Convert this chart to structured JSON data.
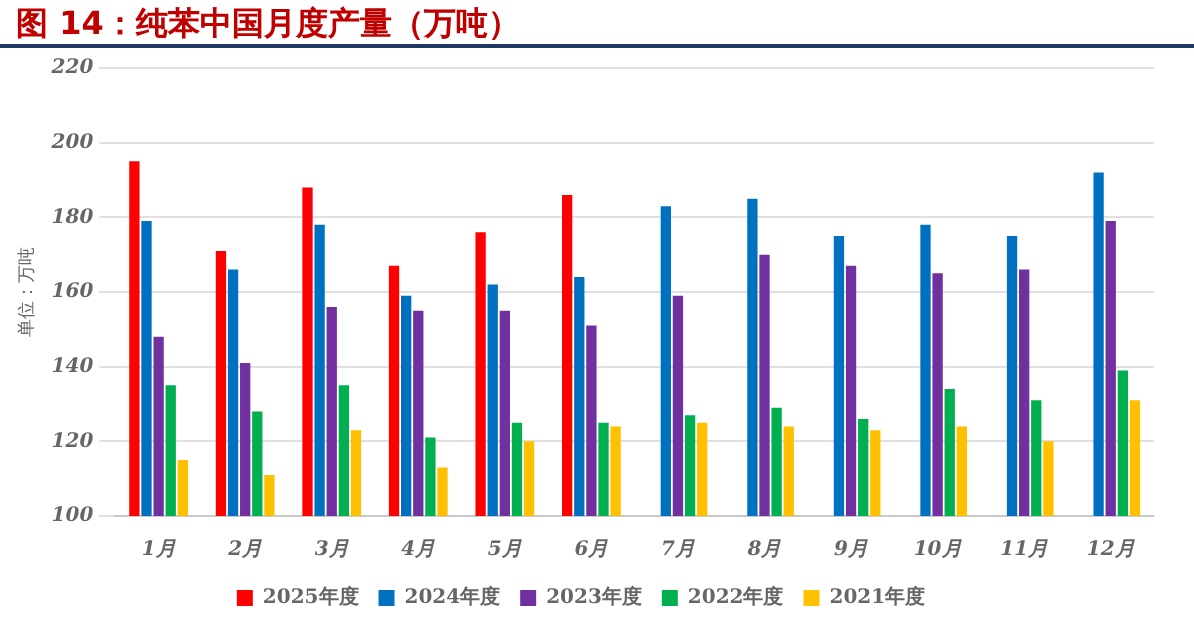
{
  "chart_data": {
    "type": "bar",
    "title": "图 14：纯苯中国月度产量（万吨）",
    "ylabel": "单位：万吨",
    "categories": [
      "1月",
      "2月",
      "3月",
      "4月",
      "5月",
      "6月",
      "7月",
      "8月",
      "9月",
      "10月",
      "11月",
      "12月"
    ],
    "series": [
      {
        "name": "2025年度",
        "color": "#ff0000",
        "values": [
          195,
          171,
          188,
          167,
          176,
          186,
          null,
          null,
          null,
          null,
          null,
          null
        ]
      },
      {
        "name": "2024年度",
        "color": "#0070c0",
        "values": [
          179,
          166,
          178,
          159,
          162,
          164,
          183,
          185,
          175,
          178,
          175,
          192
        ]
      },
      {
        "name": "2023年度",
        "color": "#7030a0",
        "values": [
          148,
          141,
          156,
          155,
          155,
          151,
          159,
          170,
          167,
          165,
          166,
          179
        ]
      },
      {
        "name": "2022年度",
        "color": "#00b050",
        "values": [
          135,
          128,
          135,
          121,
          125,
          125,
          127,
          129,
          126,
          134,
          131,
          139
        ]
      },
      {
        "name": "2021年度",
        "color": "#ffc000",
        "values": [
          115,
          111,
          123,
          113,
          120,
          124,
          125,
          124,
          123,
          124,
          120,
          131
        ]
      }
    ],
    "ylim": [
      100,
      220
    ],
    "yticks": [
      100,
      120,
      140,
      160,
      180,
      200,
      220
    ],
    "grid": "y",
    "legend": "bottom"
  }
}
